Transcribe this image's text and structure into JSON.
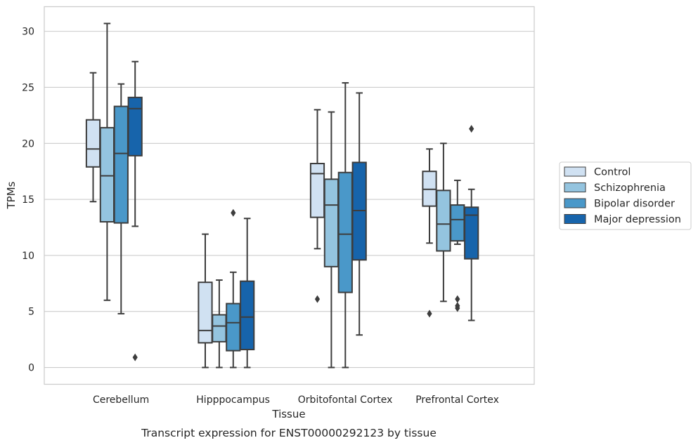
{
  "chart_data": {
    "type": "box",
    "caption": "Transcript expression for ENST00000292123 by tissue",
    "xlabel": "Tissue",
    "ylabel": "TPMs",
    "ylim": [
      -1.5,
      32.2
    ],
    "yticks": [
      0,
      5,
      10,
      15,
      20,
      25,
      30
    ],
    "grid": "horizontal",
    "legend_position": "right",
    "categories": [
      "Cerebellum",
      "Hipppocampus",
      "Orbitofontal Cortex",
      "Prefrontal Cortex"
    ],
    "series": [
      {
        "name": "Control",
        "color": "#d0e1f2",
        "boxes": [
          {
            "whisker_low": 14.8,
            "q1": 17.9,
            "median": 19.5,
            "q3": 22.1,
            "whisker_high": 26.3,
            "outliers": []
          },
          {
            "whisker_low": 0.0,
            "q1": 2.2,
            "median": 3.3,
            "q3": 7.6,
            "whisker_high": 11.9,
            "outliers": []
          },
          {
            "whisker_low": 10.6,
            "q1": 13.4,
            "median": 17.3,
            "q3": 18.2,
            "whisker_high": 23.0,
            "outliers": [
              6.1
            ]
          },
          {
            "whisker_low": 11.1,
            "q1": 14.4,
            "median": 15.9,
            "q3": 17.5,
            "whisker_high": 19.5,
            "outliers": [
              4.8
            ]
          }
        ]
      },
      {
        "name": "Schizophrenia",
        "color": "#94c4df",
        "boxes": [
          {
            "whisker_low": 6.0,
            "q1": 13.0,
            "median": 17.1,
            "q3": 21.4,
            "whisker_high": 30.7,
            "outliers": []
          },
          {
            "whisker_low": 0.0,
            "q1": 2.3,
            "median": 3.7,
            "q3": 4.7,
            "whisker_high": 7.8,
            "outliers": []
          },
          {
            "whisker_low": 0.0,
            "q1": 9.0,
            "median": 14.5,
            "q3": 16.8,
            "whisker_high": 22.8,
            "outliers": []
          },
          {
            "whisker_low": 5.9,
            "q1": 10.4,
            "median": 12.8,
            "q3": 15.8,
            "whisker_high": 20.0,
            "outliers": []
          }
        ]
      },
      {
        "name": "Bipolar disorder",
        "color": "#4a98c9",
        "boxes": [
          {
            "whisker_low": 4.8,
            "q1": 12.9,
            "median": 19.1,
            "q3": 23.3,
            "whisker_high": 25.3,
            "outliers": []
          },
          {
            "whisker_low": 0.0,
            "q1": 1.5,
            "median": 4.0,
            "q3": 5.7,
            "whisker_high": 8.5,
            "outliers": [
              13.8
            ]
          },
          {
            "whisker_low": 0.0,
            "q1": 6.7,
            "median": 11.9,
            "q3": 17.4,
            "whisker_high": 25.4,
            "outliers": []
          },
          {
            "whisker_low": 11.0,
            "q1": 11.3,
            "median": 13.2,
            "q3": 14.5,
            "whisker_high": 16.7,
            "outliers": [
              6.1,
              5.5,
              5.3
            ]
          }
        ]
      },
      {
        "name": "Major depression",
        "color": "#1764ab",
        "boxes": [
          {
            "whisker_low": 12.6,
            "q1": 18.9,
            "median": 23.1,
            "q3": 24.1,
            "whisker_high": 27.3,
            "outliers": [
              0.9
            ]
          },
          {
            "whisker_low": 0.0,
            "q1": 1.6,
            "median": 4.5,
            "q3": 7.7,
            "whisker_high": 13.3,
            "outliers": []
          },
          {
            "whisker_low": 2.9,
            "q1": 9.6,
            "median": 14.0,
            "q3": 18.3,
            "whisker_high": 24.5,
            "outliers": []
          },
          {
            "whisker_low": 4.2,
            "q1": 9.7,
            "median": 13.6,
            "q3": 14.3,
            "whisker_high": 15.9,
            "outliers": [
              21.3
            ]
          }
        ]
      }
    ]
  }
}
